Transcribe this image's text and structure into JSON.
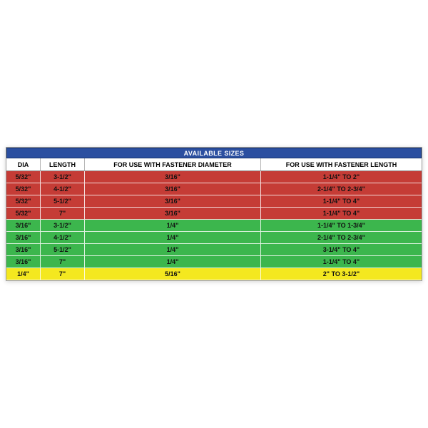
{
  "table": {
    "title": "AVAILABLE SIZES",
    "columns": [
      "DIA",
      "LENGTH",
      "FOR USE WITH FASTENER DIAMETER",
      "FOR USE WITH FASTENER LENGTH"
    ],
    "rows": [
      {
        "color": "red",
        "cells": [
          "5/32\"",
          "3-1/2\"",
          "3/16\"",
          "1-1/4\" TO 2\""
        ]
      },
      {
        "color": "red",
        "cells": [
          "5/32\"",
          "4-1/2\"",
          "3/16\"",
          "2-1/4\" TO 2-3/4\""
        ]
      },
      {
        "color": "red",
        "cells": [
          "5/32\"",
          "5-1/2\"",
          "3/16\"",
          "1-1/4\" TO 4\""
        ]
      },
      {
        "color": "red",
        "cells": [
          "5/32\"",
          "7\"",
          "3/16\"",
          "1-1/4\" TO 4\""
        ]
      },
      {
        "color": "green",
        "cells": [
          "3/16\"",
          "3-1/2\"",
          "1/4\"",
          "1-1/4\" TO 1-3/4\""
        ]
      },
      {
        "color": "green",
        "cells": [
          "3/16\"",
          "4-1/2\"",
          "1/4\"",
          "2-1/4\" TO 2-3/4\""
        ]
      },
      {
        "color": "green",
        "cells": [
          "3/16\"",
          "5-1/2\"",
          "1/4\"",
          "3-1/4\" TO 4\""
        ]
      },
      {
        "color": "green",
        "cells": [
          "3/16\"",
          "7\"",
          "1/4\"",
          "1-1/4\" TO 4\""
        ]
      },
      {
        "color": "yellow",
        "cells": [
          "1/4\"",
          "7\"",
          "5/16\"",
          "2\" TO 3-1/2\""
        ]
      }
    ],
    "colors": {
      "header_blue": "#2b4fa0",
      "header_blue_border": "#16336e",
      "red": "#c53c36",
      "green": "#3cb64d",
      "yellow": "#f4e81f",
      "cell_text": "#111111"
    }
  }
}
